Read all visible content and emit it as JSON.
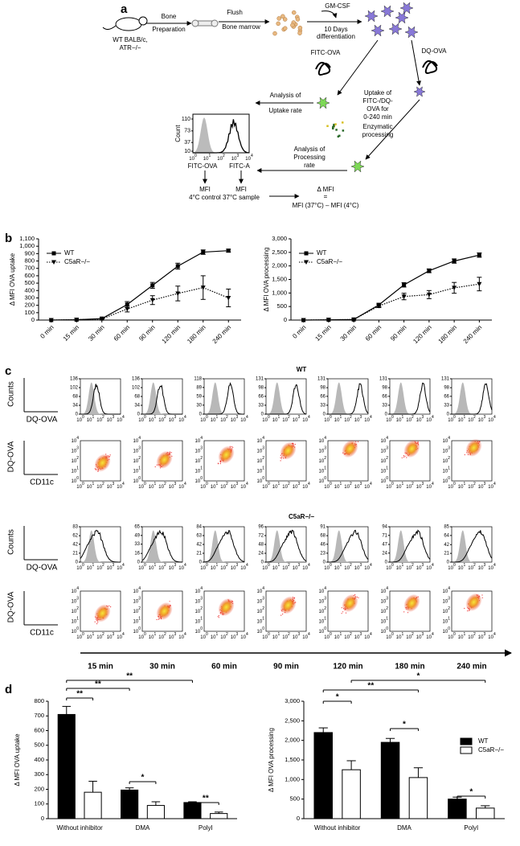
{
  "figure_labels": [
    "a",
    "b",
    "c",
    "d"
  ],
  "panel_a": {
    "steps": [
      "WT BALB/c,",
      "ATR−/−",
      "Bone",
      "Preparation",
      "Flush",
      "Bone marrow",
      "GM-CSF",
      "10 Days",
      "differentiation",
      "FITC-OVA",
      "DQ-OVA",
      "Uptake of",
      "FITC-/DQ-",
      "OVA for",
      "0-240 min",
      "Analysis of",
      "Uptake rate",
      "Enzymatic",
      "processing",
      "Analysis of",
      "Processing",
      "rate",
      "MFI",
      "4°C control",
      "MFI",
      "37°C sample",
      "Δ MFI",
      "=",
      "MFI (37°C) – MFI (4°C)"
    ],
    "inset": {
      "y_label": "Count",
      "yticks": [
        10,
        37,
        73,
        110
      ],
      "x_tick_base": "10",
      "x_tick_exponents": [
        "0",
        "1",
        "2",
        "3",
        "4"
      ],
      "x_label_left": "FITC-OVA",
      "x_label_right": "FITC-A"
    }
  },
  "chart_data": [
    {
      "type": "line",
      "y_label": "Δ MFI OVA uptake",
      "legend": "upper left",
      "categories": [
        "0 min",
        "15 min",
        "30 min",
        "60 min",
        "90 min",
        "120 min",
        "180 min",
        "240 min"
      ],
      "ylim": [
        0,
        1100
      ],
      "yticks": [
        0,
        100,
        200,
        300,
        400,
        500,
        600,
        700,
        800,
        900,
        {
          "value": 1000,
          "label": "1,000"
        },
        {
          "value": 1100,
          "label": "1,100"
        }
      ],
      "series": [
        {
          "name": "WT",
          "color": "#000000",
          "line_style": "solid",
          "marker": "square",
          "values": [
            0,
            5,
            20,
            210,
            470,
            730,
            920,
            940
          ],
          "errors": [
            0,
            0,
            0,
            40,
            40,
            40,
            30,
            20
          ]
        },
        {
          "name": "C5aR−/−",
          "color": "#000000",
          "line_style": "dotted",
          "marker": "triangle",
          "values": [
            0,
            5,
            15,
            150,
            270,
            360,
            440,
            300
          ],
          "errors": [
            0,
            0,
            0,
            40,
            60,
            100,
            160,
            120
          ]
        }
      ]
    },
    {
      "type": "line",
      "y_label": "Δ MFI OVA processing",
      "legend": "upper left",
      "categories": [
        "0 min",
        "15 min",
        "30 min",
        "60 min",
        "90 min",
        "120 min",
        "180 min",
        "240 min"
      ],
      "ylim": [
        0,
        3000
      ],
      "yticks": [
        0,
        500,
        {
          "value": 1000,
          "label": "1,000"
        },
        {
          "value": 1500,
          "label": "1,500"
        },
        {
          "value": 2000,
          "label": "2,000"
        },
        {
          "value": 2500,
          "label": "2,500"
        },
        {
          "value": 3000,
          "label": "3,000"
        }
      ],
      "series": [
        {
          "name": "WT",
          "color": "#000000",
          "line_style": "solid",
          "marker": "square",
          "values": [
            0,
            10,
            20,
            560,
            1300,
            1820,
            2180,
            2400
          ],
          "errors": [
            0,
            0,
            0,
            60,
            80,
            70,
            80,
            80
          ]
        },
        {
          "name": "C5aR−/−",
          "color": "#000000",
          "line_style": "dotted",
          "marker": "triangle",
          "values": [
            0,
            10,
            20,
            520,
            870,
            940,
            1190,
            1330
          ],
          "errors": [
            0,
            0,
            0,
            60,
            120,
            150,
            200,
            250
          ]
        }
      ]
    },
    {
      "type": "bar",
      "y_label": "Δ MFI OVA uptake",
      "categories": [
        "Without inhibitor",
        "DMA",
        "PolyI"
      ],
      "ylim": [
        0,
        800
      ],
      "yticks": [
        0,
        100,
        200,
        300,
        400,
        500,
        600,
        700,
        800
      ],
      "series": [
        {
          "name": "WT",
          "color": "#000000",
          "values": [
            710,
            195,
            110
          ],
          "errors": [
            55,
            15,
            5
          ]
        },
        {
          "name": "C5aR−/−",
          "color": "#ffffff",
          "values": [
            180,
            90,
            35
          ],
          "errors": [
            75,
            25,
            10
          ]
        }
      ],
      "annotations": [
        "**",
        "**",
        "**",
        "*",
        "**"
      ]
    },
    {
      "type": "bar",
      "y_label": "Δ MFI OVA processing",
      "legend": "upper right",
      "categories": [
        "Without inhibitor",
        "DMA",
        "PolyI"
      ],
      "ylim": [
        0,
        3000
      ],
      "yticks": [
        0,
        500,
        {
          "value": 1000,
          "label": "1,000"
        },
        {
          "value": 1500,
          "label": "1,500"
        },
        {
          "value": 2000,
          "label": "2,000"
        },
        {
          "value": 2500,
          "label": "2,500"
        },
        {
          "value": 3000,
          "label": "3,000"
        }
      ],
      "series": [
        {
          "name": "WT",
          "color": "#000000",
          "values": [
            2200,
            1950,
            500
          ],
          "errors": [
            120,
            100,
            50
          ]
        },
        {
          "name": "C5aR−/−",
          "color": "#ffffff",
          "values": [
            1250,
            1050,
            270
          ],
          "errors": [
            230,
            250,
            60
          ]
        }
      ],
      "annotations": [
        "*",
        "**",
        "*",
        "*",
        "*"
      ]
    }
  ],
  "flow": {
    "counts_label": "Counts",
    "dq_ova_label": "DQ-OVA",
    "cd11c_label": "CD11c",
    "x_tick_base": "10",
    "x_tick_exponents": [
      "0",
      "1",
      "2",
      "3",
      "4"
    ],
    "groups": [
      {
        "title": "WT",
        "histogram_yticks": [
          [
            0,
            34,
            68,
            102,
            136
          ],
          [
            0,
            34,
            68,
            102,
            136
          ],
          [
            0,
            30,
            59,
            89,
            118
          ],
          [
            0,
            33,
            66,
            98,
            131
          ],
          [
            0,
            33,
            66,
            98,
            131
          ],
          [
            0,
            33,
            66,
            98,
            131
          ],
          [
            0,
            33,
            66,
            98,
            131
          ]
        ]
      },
      {
        "title": "C5aR−/−",
        "histogram_yticks": [
          [
            0,
            21,
            42,
            62,
            83
          ],
          [
            0,
            16,
            33,
            49,
            65
          ],
          [
            0,
            21,
            42,
            63,
            84
          ],
          [
            0,
            24,
            48,
            72,
            96
          ],
          [
            0,
            23,
            46,
            68,
            91
          ],
          [
            0,
            24,
            47,
            71,
            94
          ],
          [
            0,
            21,
            42,
            64,
            85
          ]
        ]
      }
    ],
    "timepoints": [
      "15 min",
      "30 min",
      "60 min",
      "90 min",
      "120 min",
      "180 min",
      "240 min"
    ]
  }
}
